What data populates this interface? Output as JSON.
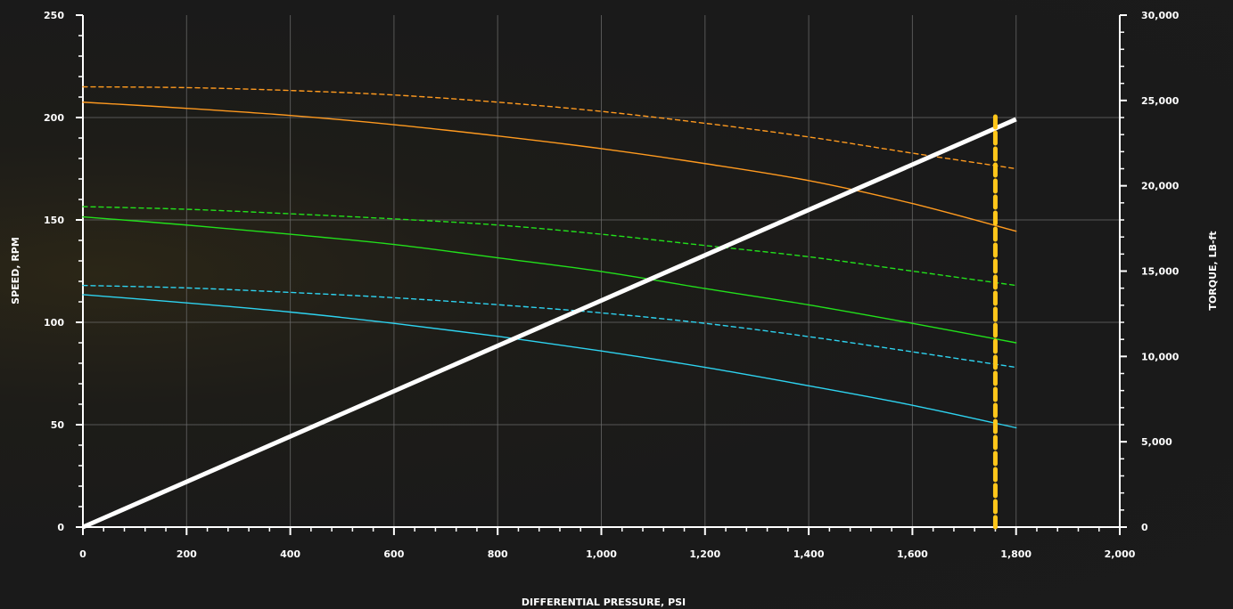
{
  "chart_data": {
    "type": "line",
    "xlabel": "DIFFERENTIAL PRESSURE, PSI",
    "ylabel": "SPEED, RPM",
    "y2label": "TORQUE, LB-ft",
    "xlim": [
      0,
      2000
    ],
    "ylim": [
      0,
      250
    ],
    "y2lim": [
      0,
      30000
    ],
    "x_ticks": [
      0,
      200,
      400,
      600,
      800,
      1000,
      1200,
      1400,
      1600,
      1800,
      2000
    ],
    "x_tick_labels": [
      "0",
      "200",
      "400",
      "600",
      "800",
      "1,000",
      "1,200",
      "1,400",
      "1,600",
      "1,800",
      "2,000"
    ],
    "y_ticks": [
      0,
      50,
      100,
      150,
      200,
      250
    ],
    "y_tick_labels": [
      "0",
      "50",
      "100",
      "150",
      "200",
      "250"
    ],
    "y2_ticks": [
      0,
      5000,
      10000,
      15000,
      20000,
      25000,
      30000
    ],
    "y2_tick_labels": [
      "0",
      "5,000",
      "10,000",
      "15,000",
      "20,000",
      "25,000",
      "30,000"
    ],
    "grid": true,
    "reference_line": {
      "x": 1760,
      "color": "#ffc61a",
      "style": "dashed"
    },
    "series": [
      {
        "axis": "left",
        "color": "#ff9a1f",
        "style": "dashed",
        "x": [
          0,
          200,
          400,
          600,
          800,
          1000,
          1200,
          1400,
          1600,
          1800
        ],
        "y": [
          215,
          214.6,
          213.2,
          211,
          207.5,
          203,
          197.2,
          190.5,
          182.6,
          175
        ]
      },
      {
        "axis": "left",
        "color": "#ff9a1f",
        "style": "solid",
        "x": [
          0,
          200,
          400,
          600,
          800,
          1000,
          1200,
          1400,
          1600,
          1800
        ],
        "y": [
          207.5,
          204.5,
          201,
          196.5,
          191,
          184.8,
          177.5,
          169.2,
          158,
          144.5
        ]
      },
      {
        "axis": "left",
        "color": "#22e01b",
        "style": "dashed",
        "x": [
          0,
          200,
          400,
          600,
          800,
          1000,
          1200,
          1400,
          1600,
          1800
        ],
        "y": [
          156.5,
          155.2,
          153,
          150.5,
          147.5,
          143,
          137.5,
          132,
          125,
          118
        ]
      },
      {
        "axis": "left",
        "color": "#22e01b",
        "style": "solid",
        "x": [
          0,
          200,
          400,
          600,
          800,
          1000,
          1200,
          1400,
          1600,
          1800
        ],
        "y": [
          151.5,
          147.5,
          143,
          138,
          131.5,
          124.8,
          116.5,
          108.5,
          99.5,
          90
        ]
      },
      {
        "axis": "left",
        "color": "#2ed3f0",
        "style": "dashed",
        "x": [
          0,
          200,
          400,
          600,
          800,
          1000,
          1200,
          1400,
          1600,
          1800
        ],
        "y": [
          118,
          116.8,
          114.6,
          112,
          108.6,
          104.6,
          99.5,
          93,
          85.6,
          78
        ]
      },
      {
        "axis": "left",
        "color": "#2ed3f0",
        "style": "solid",
        "x": [
          0,
          200,
          400,
          600,
          800,
          1000,
          1200,
          1400,
          1600,
          1800
        ],
        "y": [
          113.5,
          109.5,
          105,
          99.5,
          93.2,
          86,
          78,
          69,
          59.5,
          48.5
        ]
      },
      {
        "axis": "right",
        "color": "#ffffff",
        "style": "solid",
        "x": [
          0,
          1800
        ],
        "y": [
          0,
          23900
        ]
      }
    ]
  }
}
